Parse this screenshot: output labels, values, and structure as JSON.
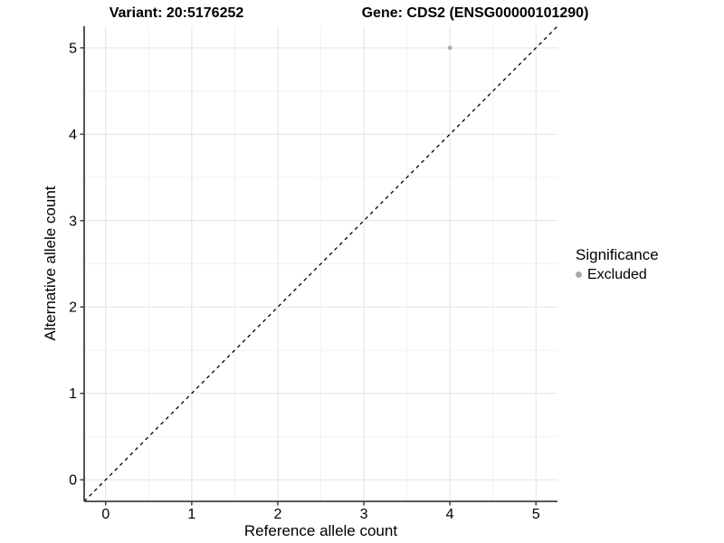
{
  "header": {
    "left_title": "Variant: 20:5176252",
    "right_title": "Gene: CDS2 (ENSG00000101290)"
  },
  "chart_data": {
    "type": "scatter",
    "xlabel": "Reference allele count",
    "ylabel": "Alternative allele count",
    "xlim": [
      -0.25,
      5.25
    ],
    "ylim": [
      -0.25,
      5.25
    ],
    "x_ticks": [
      0,
      1,
      2,
      3,
      4,
      5
    ],
    "y_ticks": [
      0,
      1,
      2,
      3,
      4,
      5
    ],
    "grid": "major and minor gridlines",
    "reference_line": {
      "type": "abline",
      "slope": 1,
      "intercept": 0,
      "style": "dashed",
      "color": "#000000"
    },
    "series": [
      {
        "name": "Excluded",
        "color": "#ababab",
        "points": [
          {
            "x": 4,
            "y": 5
          }
        ]
      }
    ],
    "legend": {
      "title": "Significance",
      "position": "right",
      "entries": [
        {
          "label": "Excluded",
          "color": "#a8a8a8"
        }
      ]
    },
    "style_colors": {
      "major_grid": "#e3e3e3",
      "minor_grid": "#f1f1f1",
      "axis_line": "#404040",
      "tick_mark": "#404040",
      "tick_label": "#000000"
    }
  }
}
